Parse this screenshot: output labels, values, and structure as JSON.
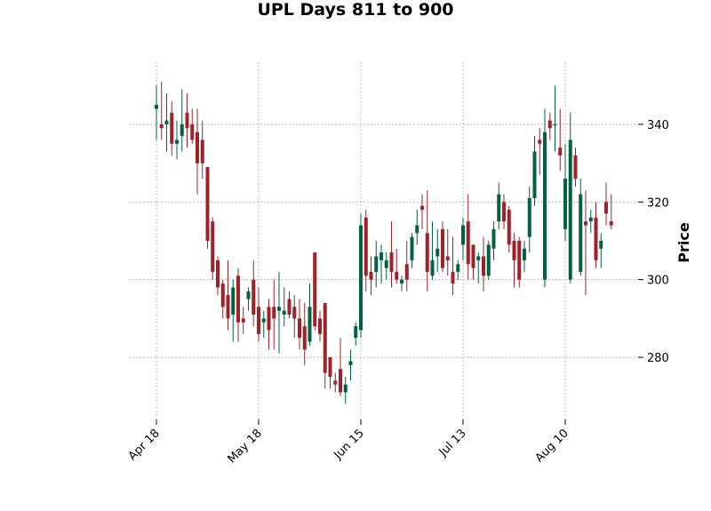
{
  "chart_data": {
    "type": "candlestick",
    "title": "UPL Days 811 to 900",
    "ylabel": "Price",
    "y_axis_side": "right",
    "ylim": [
      264,
      356
    ],
    "y_ticks": [
      280,
      300,
      320,
      340
    ],
    "x_tick_labels": [
      {
        "label": "Apr 18",
        "index": 0
      },
      {
        "label": "May 18",
        "index": 20
      },
      {
        "label": "Jun 15",
        "index": 40
      },
      {
        "label": "Jul 13",
        "index": 60
      },
      {
        "label": "Aug 10",
        "index": 80
      }
    ],
    "grid": true,
    "colors": {
      "up": "#006340",
      "down": "#a02128"
    },
    "candles": [
      [
        344.0,
        350.0,
        336.0,
        345.0
      ],
      [
        340.0,
        351.0,
        336.0,
        339.0
      ],
      [
        340.0,
        348.0,
        333.0,
        341.0
      ],
      [
        343.0,
        346.0,
        332.0,
        335.0
      ],
      [
        335.0,
        341.0,
        331.0,
        336.0
      ],
      [
        337.0,
        349.0,
        333.0,
        340.0
      ],
      [
        343.0,
        348.0,
        334.0,
        339.0
      ],
      [
        340.0,
        344.0,
        335.0,
        336.0
      ],
      [
        338.0,
        344.0,
        322.0,
        330.0
      ],
      [
        336.0,
        341.0,
        326.0,
        330.0
      ],
      [
        329.0,
        329.0,
        308.0,
        310.0
      ],
      [
        315.0,
        316.0,
        300.0,
        302.0
      ],
      [
        305.0,
        306.0,
        296.0,
        298.0
      ],
      [
        299.0,
        300.0,
        290.0,
        293.0
      ],
      [
        296.0,
        305.0,
        287.0,
        290.0
      ],
      [
        291.0,
        300.0,
        284.0,
        298.0
      ],
      [
        301.0,
        303.0,
        284.0,
        289.0
      ],
      [
        290.0,
        293.0,
        286.0,
        289.0
      ],
      [
        295.0,
        298.0,
        292.0,
        297.0
      ],
      [
        300.0,
        305.0,
        288.0,
        291.0
      ],
      [
        293.0,
        298.0,
        284.0,
        286.0
      ],
      [
        289.0,
        292.0,
        285.0,
        290.0
      ],
      [
        293.0,
        295.0,
        282.0,
        287.0
      ],
      [
        293.0,
        300.0,
        282.0,
        290.0
      ],
      [
        292.0,
        302.0,
        281.0,
        293.0
      ],
      [
        291.0,
        298.0,
        288.0,
        292.0
      ],
      [
        295.0,
        297.0,
        290.0,
        291.0
      ],
      [
        293.0,
        296.0,
        285.0,
        290.0
      ],
      [
        290.0,
        295.0,
        282.0,
        285.0
      ],
      [
        288.0,
        294.0,
        278.0,
        282.0
      ],
      [
        284.0,
        299.0,
        283.0,
        293.0
      ],
      [
        307.0,
        307.0,
        287.0,
        288.0
      ],
      [
        290.0,
        292.0,
        284.0,
        286.0
      ],
      [
        294.0,
        294.0,
        272.0,
        276.0
      ],
      [
        280.0,
        280.0,
        272.0,
        275.0
      ],
      [
        274.0,
        276.0,
        271.0,
        273.0
      ],
      [
        277.0,
        285.0,
        270.0,
        271.0
      ],
      [
        271.0,
        275.0,
        268.0,
        273.0
      ],
      [
        278.0,
        282.0,
        274.0,
        279.0
      ],
      [
        285.0,
        289.0,
        283.0,
        288.0
      ],
      [
        287.0,
        317.0,
        285.0,
        314.0
      ],
      [
        316.0,
        318.0,
        297.0,
        301.0
      ],
      [
        302.0,
        306.0,
        296.0,
        300.0
      ],
      [
        302.0,
        310.0,
        298.0,
        306.0
      ],
      [
        305.0,
        309.0,
        299.0,
        307.0
      ],
      [
        303.0,
        307.0,
        300.0,
        305.0
      ],
      [
        307.0,
        315.0,
        298.0,
        302.0
      ],
      [
        302.0,
        308.0,
        299.0,
        300.0
      ],
      [
        299.0,
        301.0,
        297.0,
        300.0
      ],
      [
        304.0,
        310.0,
        297.0,
        300.0
      ],
      [
        305.0,
        312.0,
        303.0,
        311.0
      ],
      [
        312.0,
        318.0,
        309.0,
        314.0
      ],
      [
        319.0,
        322.0,
        313.0,
        318.0
      ],
      [
        312.0,
        323.0,
        297.0,
        302.0
      ],
      [
        301.0,
        315.0,
        300.0,
        305.0
      ],
      [
        306.0,
        313.0,
        302.0,
        308.0
      ],
      [
        313.0,
        315.0,
        302.0,
        303.0
      ],
      [
        306.0,
        313.0,
        301.0,
        305.0
      ],
      [
        302.0,
        311.0,
        296.0,
        299.0
      ],
      [
        302.0,
        305.0,
        300.0,
        304.0
      ],
      [
        309.0,
        316.0,
        305.0,
        314.0
      ],
      [
        315.0,
        322.0,
        300.0,
        304.0
      ],
      [
        309.0,
        309.0,
        300.0,
        303.0
      ],
      [
        305.0,
        307.0,
        299.0,
        306.0
      ],
      [
        306.0,
        311.0,
        297.0,
        301.0
      ],
      [
        301.0,
        310.0,
        300.0,
        309.0
      ],
      [
        308.0,
        315.0,
        305.0,
        313.0
      ],
      [
        315.0,
        325.0,
        313.0,
        322.0
      ],
      [
        320.0,
        322.0,
        313.0,
        315.0
      ],
      [
        318.0,
        319.0,
        307.0,
        309.0
      ],
      [
        310.0,
        312.0,
        298.0,
        305.0
      ],
      [
        310.0,
        311.0,
        298.0,
        300.0
      ],
      [
        305.0,
        310.0,
        302.0,
        308.0
      ],
      [
        311.0,
        324.0,
        307.0,
        321.0
      ],
      [
        321.0,
        337.0,
        319.0,
        333.0
      ],
      [
        336.0,
        339.0,
        327.0,
        335.0
      ],
      [
        300.0,
        344.0,
        298.0,
        338.0
      ],
      [
        341.0,
        343.0,
        336.0,
        339.0
      ],
      [
        340.0,
        350.0,
        333.0,
        340.0
      ],
      [
        334.0,
        344.0,
        328.0,
        332.0
      ],
      [
        313.0,
        335.0,
        310.0,
        326.0
      ],
      [
        300.0,
        343.0,
        299.0,
        336.0
      ],
      [
        332.0,
        334.0,
        324.0,
        326.0
      ],
      [
        302.0,
        326.0,
        301.0,
        322.0
      ],
      [
        315.0,
        323.0,
        296.0,
        314.0
      ],
      [
        315.0,
        318.0,
        312.0,
        316.0
      ],
      [
        316.0,
        320.0,
        303.0,
        305.0
      ],
      [
        308.0,
        312.0,
        303.0,
        310.0
      ],
      [
        320.0,
        325.0,
        314.0,
        317.0
      ],
      [
        315.0,
        322.0,
        313.0,
        314.0
      ]
    ]
  }
}
